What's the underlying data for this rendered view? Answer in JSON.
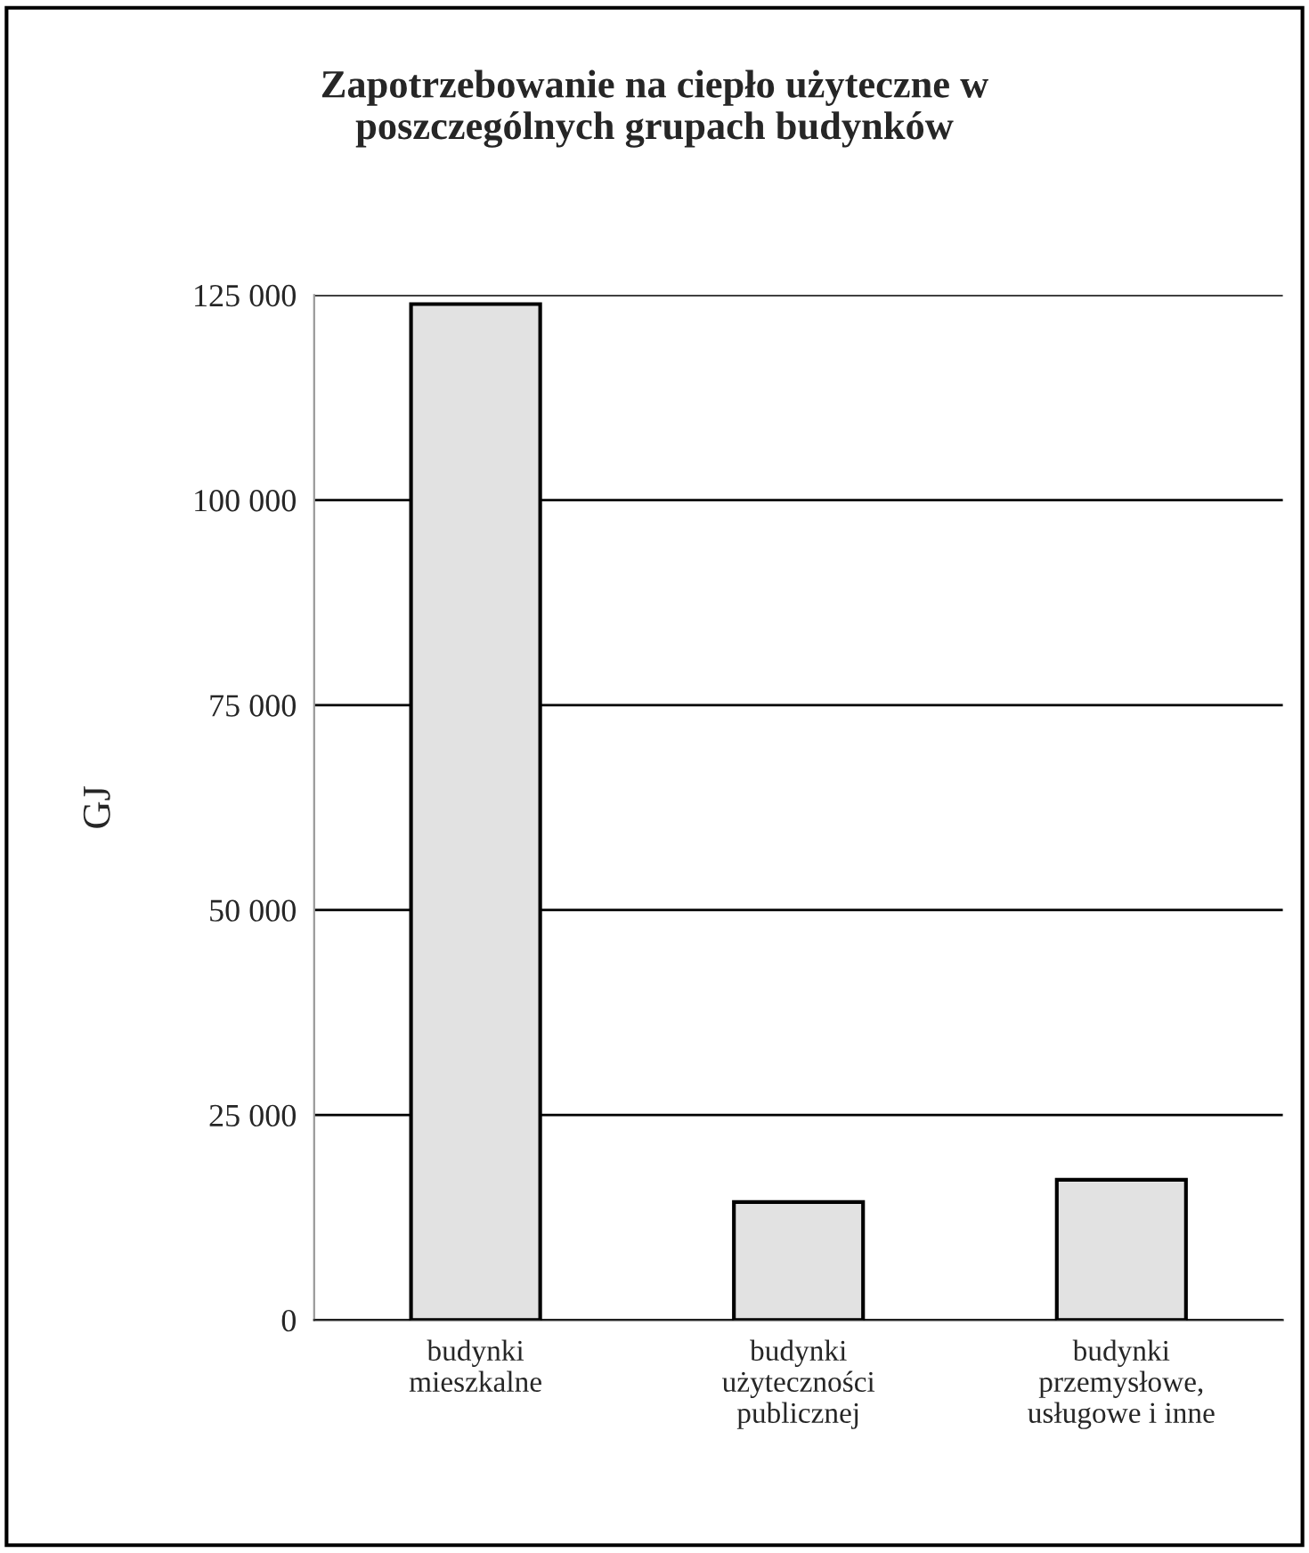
{
  "chart_data": {
    "type": "bar",
    "title": "Zapotrzebowanie na ciepło użyteczne w\nposzczególnych grupach budynków",
    "ylabel": "GJ",
    "categories": [
      "budynki\nmieszkalne",
      "budynki\nużyteczności\npublicznej",
      "budynki\nprzemysłowe,\nusługowe i inne"
    ],
    "values": [
      123900,
      14400,
      17100
    ],
    "color": "#e2e2e2",
    "ylim": [
      0,
      125000
    ],
    "yticks": [
      {
        "value": 0,
        "label": "0"
      },
      {
        "value": 25000,
        "label": "25 000"
      },
      {
        "value": 50000,
        "label": "50 000"
      },
      {
        "value": 75000,
        "label": "75 000"
      },
      {
        "value": 100000,
        "label": "100 000"
      },
      {
        "value": 125000,
        "label": "125 000"
      }
    ],
    "grid": "y"
  }
}
